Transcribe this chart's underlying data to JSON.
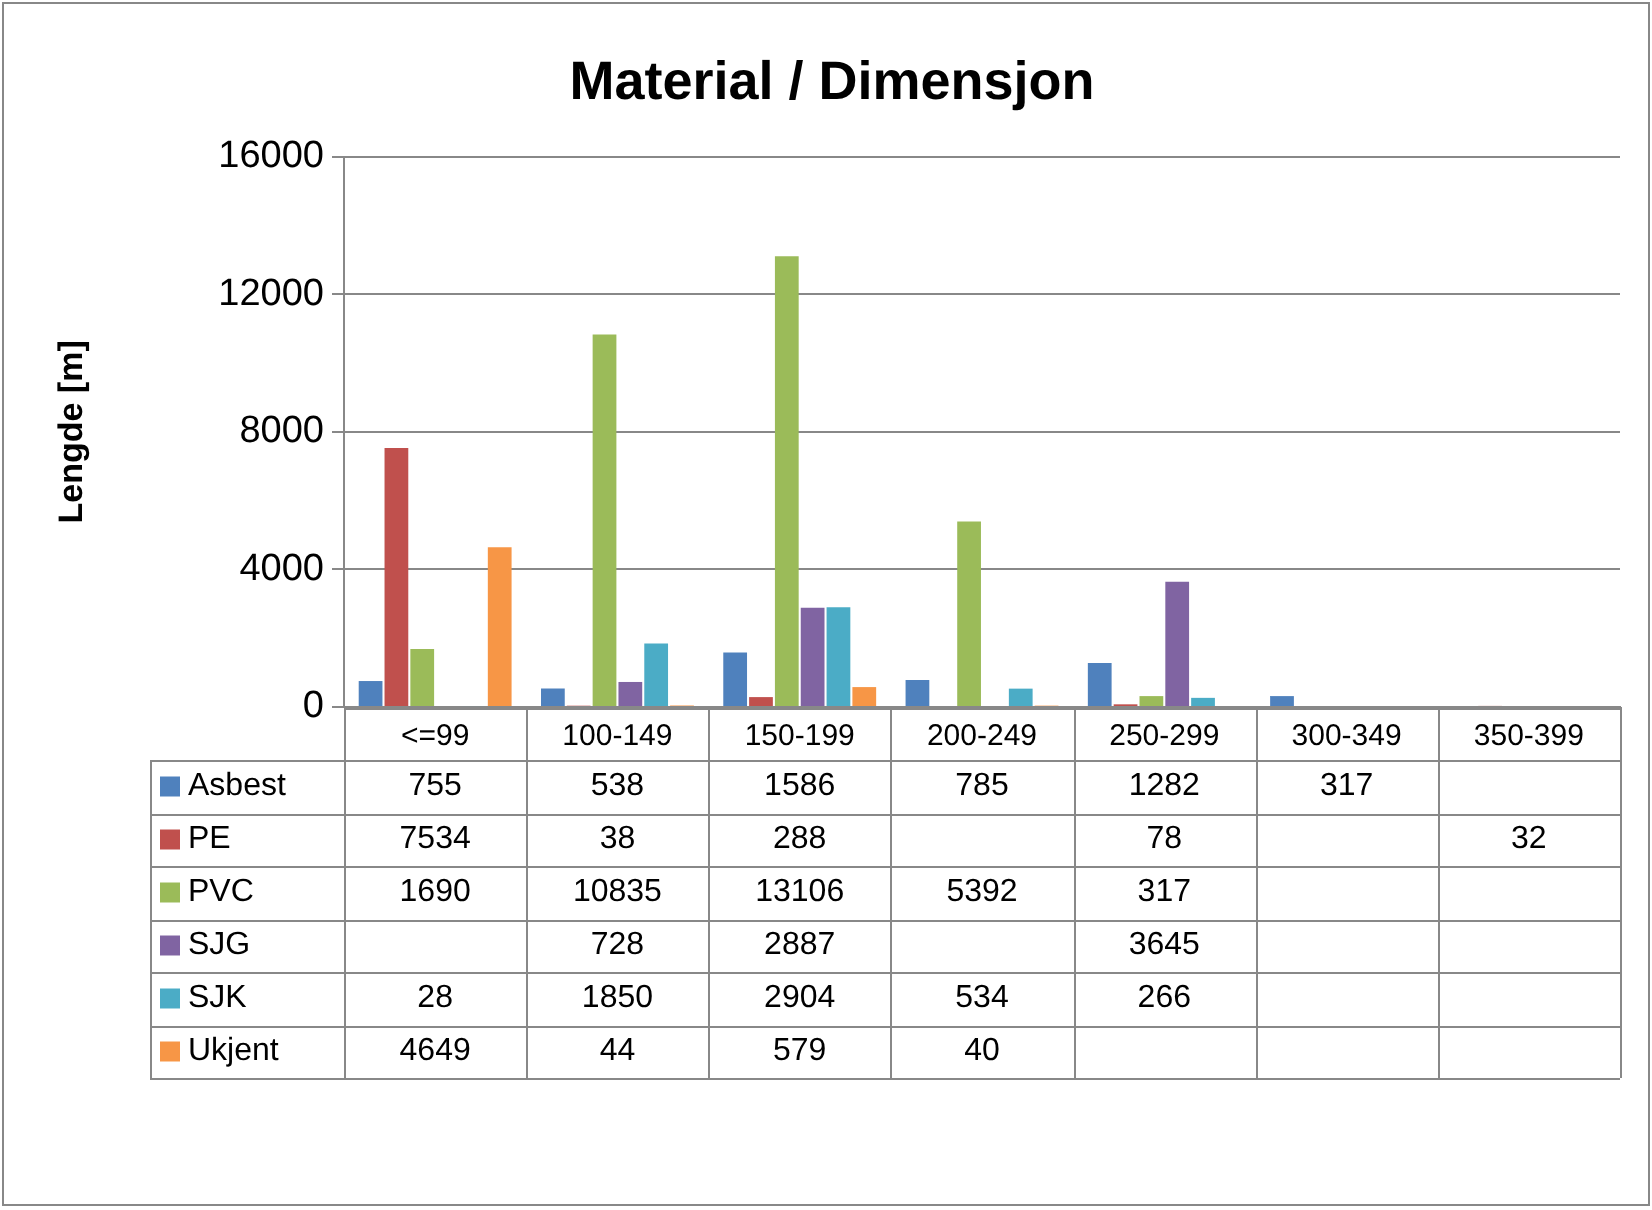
{
  "chart_data": {
    "type": "bar",
    "title": "Material / Dimensjon",
    "ylabel": "Lengde [m]",
    "categories": [
      "<=99",
      "100-149",
      "150-199",
      "200-249",
      "250-299",
      "300-349",
      "350-399"
    ],
    "series": [
      {
        "name": "Asbest",
        "color": "#4f81bd",
        "values": [
          755,
          538,
          1586,
          785,
          1282,
          317,
          null
        ]
      },
      {
        "name": "PE",
        "color": "#c0504d",
        "values": [
          7534,
          38,
          288,
          null,
          78,
          null,
          32
        ]
      },
      {
        "name": "PVC",
        "color": "#9bbb59",
        "values": [
          1690,
          10835,
          13106,
          5392,
          317,
          null,
          null
        ]
      },
      {
        "name": "SJG",
        "color": "#8064a2",
        "values": [
          null,
          728,
          2887,
          null,
          3645,
          null,
          null
        ]
      },
      {
        "name": "SJK",
        "color": "#4bacc6",
        "values": [
          28,
          1850,
          2904,
          534,
          266,
          null,
          null
        ]
      },
      {
        "name": "Ukjent",
        "color": "#f79646",
        "values": [
          4649,
          44,
          579,
          40,
          null,
          null,
          null
        ]
      }
    ],
    "ylim": [
      0,
      16000
    ],
    "yticks": [
      0,
      4000,
      8000,
      12000,
      16000
    ],
    "grid": "y",
    "legend": "bottom left",
    "data_labels": true
  }
}
